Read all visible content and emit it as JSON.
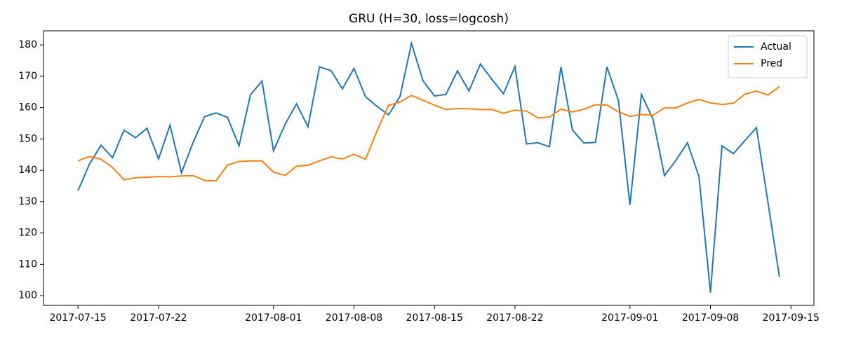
{
  "chart_data": {
    "type": "line",
    "title": "GRU (H=30, loss=logcosh)",
    "x": [
      "2017-07-15",
      "2017-07-16",
      "2017-07-17",
      "2017-07-18",
      "2017-07-19",
      "2017-07-20",
      "2017-07-21",
      "2017-07-22",
      "2017-07-23",
      "2017-07-24",
      "2017-07-25",
      "2017-07-26",
      "2017-07-27",
      "2017-07-28",
      "2017-07-29",
      "2017-07-30",
      "2017-07-31",
      "2017-08-01",
      "2017-08-02",
      "2017-08-03",
      "2017-08-04",
      "2017-08-05",
      "2017-08-06",
      "2017-08-07",
      "2017-08-08",
      "2017-08-09",
      "2017-08-10",
      "2017-08-11",
      "2017-08-12",
      "2017-08-13",
      "2017-08-14",
      "2017-08-15",
      "2017-08-16",
      "2017-08-17",
      "2017-08-18",
      "2017-08-19",
      "2017-08-20",
      "2017-08-21",
      "2017-08-22",
      "2017-08-23",
      "2017-08-24",
      "2017-08-25",
      "2017-08-26",
      "2017-08-27",
      "2017-08-28",
      "2017-08-29",
      "2017-08-30",
      "2017-08-31",
      "2017-09-01",
      "2017-09-02",
      "2017-09-03",
      "2017-09-04",
      "2017-09-05",
      "2017-09-06",
      "2017-09-07",
      "2017-09-08",
      "2017-09-09",
      "2017-09-10",
      "2017-09-11",
      "2017-09-12",
      "2017-09-13",
      "2017-09-14"
    ],
    "series": [
      {
        "name": "Actual",
        "color": "#1f77b4",
        "values": [
          133.5,
          142,
          148,
          144,
          152.8,
          150.4,
          153.4,
          143.6,
          154.4,
          139.2,
          148.8,
          157.1,
          158.3,
          156.9,
          147.8,
          164.1,
          168.5,
          146.2,
          154.6,
          161.2,
          153.9,
          173,
          171.8,
          166,
          172.5,
          163.5,
          160.4,
          157.7,
          163.5,
          180.5,
          168.6,
          163.7,
          164.2,
          171.7,
          165.3,
          173.9,
          169,
          164.4,
          173.1,
          148.4,
          148.8,
          147.5,
          173,
          152.8,
          148.7,
          148.9,
          173,
          162.2,
          129,
          164.2,
          156.4,
          138.3,
          143.2,
          148.8,
          138,
          101,
          147.8,
          145.3,
          149.5,
          153.6,
          129.8,
          106
        ]
      },
      {
        "name": "Pred",
        "color": "#ff7f0e",
        "values": [
          143,
          144.4,
          143.5,
          140.9,
          137,
          137.6,
          137.8,
          138,
          137.9,
          138.2,
          138.3,
          136.8,
          136.6,
          141.7,
          142.8,
          143,
          143,
          139.4,
          138.4,
          141.3,
          141.6,
          143,
          144.3,
          143.6,
          145.1,
          143.5,
          152.5,
          160.7,
          161.8,
          163.9,
          162.3,
          160.8,
          159.4,
          159.7,
          159.6,
          159.4,
          159.4,
          158.2,
          159.2,
          158.9,
          156.7,
          157,
          159.5,
          158.6,
          159.5,
          160.9,
          160.8,
          158.7,
          157.2,
          157.8,
          157.6,
          159.9,
          159.9,
          161.5,
          162.6,
          161.5,
          161,
          161.4,
          164.3,
          165.3,
          164,
          166.7
        ]
      }
    ],
    "xlim": [
      "2017-07-12",
      "2017-09-17"
    ],
    "xticks": [
      "2017-07-15",
      "2017-07-22",
      "2017-08-01",
      "2017-08-08",
      "2017-08-15",
      "2017-08-22",
      "2017-09-01",
      "2017-09-08",
      "2017-09-15"
    ],
    "ylim": [
      96.9,
      184.5
    ],
    "yticks": [
      100,
      110,
      120,
      130,
      140,
      150,
      160,
      170,
      180
    ],
    "legend": "upper right"
  }
}
